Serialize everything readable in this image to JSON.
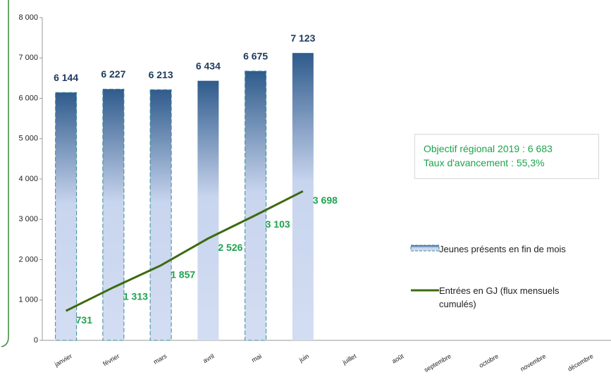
{
  "chart_data": {
    "type": "bar",
    "categories": [
      "janvier",
      "février",
      "mars",
      "avril",
      "mai",
      "juin",
      "juillet",
      "août",
      "septembre",
      "octobre",
      "novembre",
      "décembre"
    ],
    "series": [
      {
        "name": "Jeunes présents en fin de mois",
        "type": "bar",
        "color": "#2f5b8c",
        "values": [
          6144,
          6227,
          6213,
          6434,
          6675,
          7123,
          null,
          null,
          null,
          null,
          null,
          null
        ],
        "value_labels": [
          "6 144",
          "6 227",
          "6 213",
          "6 434",
          "6 675",
          "7 123",
          null,
          null,
          null,
          null,
          null,
          null
        ],
        "border_dashed": [
          true,
          true,
          true,
          false,
          true,
          false,
          false,
          false,
          false,
          false,
          false,
          false
        ]
      },
      {
        "name": "Entrées en GJ (flux mensuels cumulés)",
        "type": "line",
        "color": "#3d6b10",
        "label_color": "#1fa24e",
        "values": [
          731,
          1313,
          1857,
          2526,
          3103,
          3698,
          null,
          null,
          null,
          null,
          null,
          null
        ],
        "value_labels": [
          "731",
          "1 313",
          "1 857",
          "2 526",
          "3 103",
          "3 698",
          null,
          null,
          null,
          null,
          null,
          null
        ]
      }
    ],
    "ylim": [
      0,
      8000
    ],
    "yticks": [
      0,
      {
        "value": 1000,
        "label": "1 000"
      },
      {
        "value": 2000,
        "label": "2 000"
      },
      {
        "value": 3000,
        "label": "3 000"
      },
      {
        "value": 4000,
        "label": "4 000"
      },
      {
        "value": 5000,
        "label": "5 000"
      },
      {
        "value": 6000,
        "label": "6 000"
      },
      {
        "value": 7000,
        "label": "7 000"
      },
      {
        "value": 8000,
        "label": "8 000"
      }
    ],
    "annotations": [
      "Objectif régional 2019 : 6 683",
      "Taux d'avancement : 55,3%"
    ]
  }
}
